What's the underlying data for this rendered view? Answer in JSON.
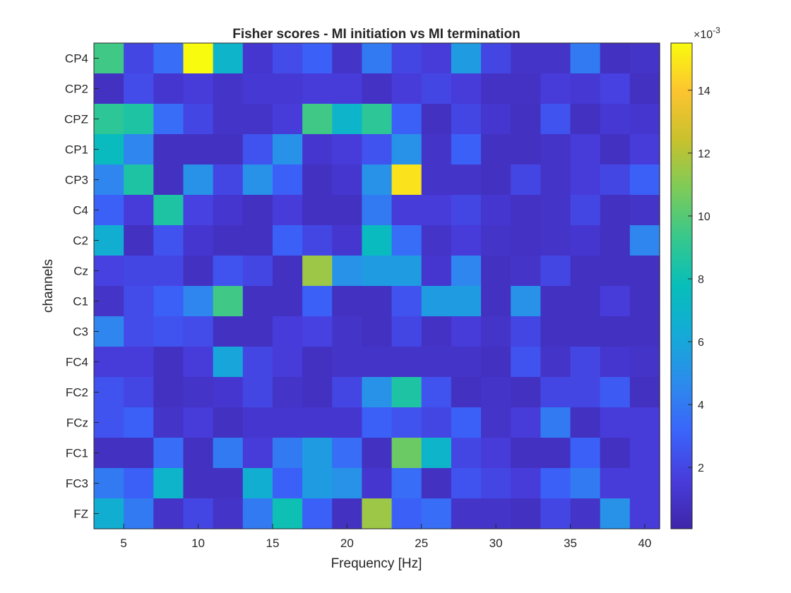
{
  "chart_data": {
    "type": "heatmap",
    "title": "Fisher scores - MI initiation vs MI termination",
    "xlabel": "Frequency [Hz]",
    "ylabel": "channels",
    "x": [
      4,
      6,
      8,
      10,
      12,
      14,
      16,
      18,
      20,
      22,
      24,
      26,
      28,
      30,
      32,
      34,
      36,
      38,
      40
    ],
    "x_ticks": [
      5,
      10,
      15,
      20,
      25,
      30,
      35,
      40
    ],
    "xlim": [
      3,
      41
    ],
    "channels": [
      "CP4",
      "CP2",
      "CPZ",
      "CP1",
      "CP3",
      "C4",
      "C2",
      "Cz",
      "C1",
      "C3",
      "FC4",
      "FC2",
      "FCz",
      "FC1",
      "FC3",
      "FZ"
    ],
    "values_unit_exponent": -3,
    "colorbar": {
      "label": "×10^-3",
      "ticks": [
        2,
        4,
        6,
        8,
        10,
        12,
        14
      ],
      "range": [
        0.05,
        15.5
      ],
      "colormap": "parula"
    },
    "values": [
      [
        9.5,
        2.0,
        3.5,
        15.5,
        7.0,
        1.2,
        2.2,
        3.0,
        1.0,
        4.0,
        2.0,
        1.5,
        5.5,
        2.0,
        1.0,
        1.0,
        4.0,
        0.8,
        1.0
      ],
      [
        0.8,
        2.2,
        1.2,
        1.5,
        1.0,
        1.3,
        1.3,
        1.5,
        1.5,
        0.9,
        1.5,
        2.0,
        1.5,
        0.9,
        0.9,
        1.5,
        1.3,
        1.8,
        0.8
      ],
      [
        9.0,
        8.5,
        3.5,
        2.0,
        1.0,
        1.0,
        1.5,
        9.5,
        7.0,
        9.0,
        3.0,
        0.8,
        2.0,
        1.2,
        0.8,
        2.5,
        0.8,
        1.3,
        1.2
      ],
      [
        7.5,
        4.5,
        0.8,
        0.8,
        0.8,
        2.5,
        5.0,
        1.2,
        1.5,
        2.5,
        5.0,
        1.0,
        3.0,
        0.8,
        0.8,
        1.0,
        1.5,
        0.8,
        1.5
      ],
      [
        4.5,
        8.5,
        0.8,
        5.0,
        2.0,
        5.0,
        3.0,
        0.8,
        1.2,
        5.0,
        14.8,
        1.0,
        1.0,
        0.8,
        2.0,
        1.0,
        1.5,
        2.0,
        3.0
      ],
      [
        3.0,
        1.5,
        8.5,
        1.8,
        1.2,
        0.8,
        1.5,
        0.8,
        0.8,
        4.0,
        1.5,
        1.5,
        2.0,
        1.2,
        0.9,
        1.0,
        2.0,
        0.8,
        1.0
      ],
      [
        6.5,
        0.8,
        2.5,
        1.2,
        0.8,
        0.8,
        3.0,
        2.0,
        1.2,
        7.5,
        3.5,
        1.0,
        1.5,
        1.0,
        0.9,
        1.0,
        1.2,
        0.8,
        4.5
      ],
      [
        1.8,
        2.0,
        2.0,
        0.8,
        2.5,
        2.0,
        0.8,
        11.5,
        5.0,
        5.5,
        5.5,
        1.2,
        4.5,
        0.8,
        1.0,
        2.0,
        0.8,
        0.8,
        0.8
      ],
      [
        1.0,
        2.2,
        3.0,
        4.5,
        9.5,
        0.8,
        0.8,
        3.0,
        0.8,
        0.8,
        2.5,
        5.5,
        5.5,
        0.8,
        5.0,
        0.8,
        0.8,
        1.5,
        0.8
      ],
      [
        4.5,
        2.2,
        2.5,
        2.2,
        0.8,
        0.8,
        1.5,
        1.8,
        1.0,
        0.8,
        2.0,
        0.9,
        1.5,
        1.0,
        2.0,
        0.8,
        0.8,
        0.8,
        0.8
      ],
      [
        1.5,
        1.5,
        0.8,
        1.5,
        6.0,
        2.0,
        1.5,
        0.8,
        1.0,
        1.0,
        1.0,
        1.0,
        1.0,
        0.8,
        2.5,
        1.0,
        2.0,
        1.2,
        1.0
      ],
      [
        2.5,
        2.0,
        0.8,
        1.0,
        1.2,
        2.0,
        1.0,
        0.8,
        2.0,
        5.0,
        8.5,
        2.5,
        0.8,
        1.0,
        0.8,
        2.0,
        2.0,
        2.8,
        0.8
      ],
      [
        2.5,
        3.0,
        1.0,
        1.5,
        0.8,
        1.2,
        1.2,
        1.2,
        1.2,
        3.0,
        2.5,
        2.0,
        3.0,
        1.0,
        1.5,
        4.0,
        0.8,
        1.5,
        1.5
      ],
      [
        0.8,
        0.8,
        3.5,
        0.8,
        4.0,
        1.5,
        4.0,
        5.5,
        3.5,
        0.8,
        10.5,
        7.0,
        2.0,
        1.5,
        0.8,
        0.8,
        3.0,
        0.8,
        1.5
      ],
      [
        4.0,
        3.0,
        7.0,
        0.8,
        0.8,
        6.5,
        3.0,
        5.5,
        5.0,
        1.2,
        3.5,
        0.8,
        2.5,
        2.0,
        1.5,
        3.0,
        4.0,
        1.5,
        1.5
      ],
      [
        6.5,
        4.0,
        1.0,
        2.0,
        1.0,
        4.0,
        8.0,
        3.0,
        0.8,
        11.5,
        3.0,
        3.5,
        1.0,
        1.0,
        0.8,
        2.0,
        1.0,
        5.0,
        1.5
      ]
    ]
  }
}
